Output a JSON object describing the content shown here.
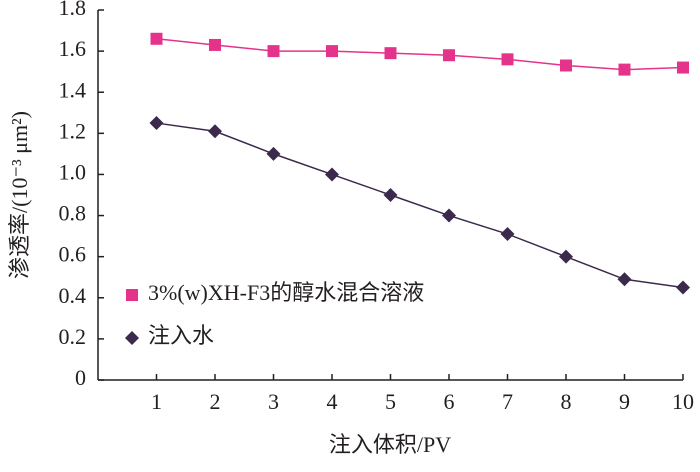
{
  "chart_data": {
    "type": "line",
    "x_label": "注入体积/PV",
    "y_label": "渗透率/(10⁻³ μm²)",
    "x": [
      1,
      2,
      3,
      4,
      5,
      6,
      7,
      8,
      9,
      10
    ],
    "series": [
      {
        "name": "3%(w)XH-F3的醇水混合溶液",
        "color": "#e5338b",
        "marker": "square",
        "values": [
          1.66,
          1.63,
          1.6,
          1.6,
          1.59,
          1.58,
          1.56,
          1.53,
          1.51,
          1.52
        ]
      },
      {
        "name": "注入水",
        "color": "#3b2a4c",
        "marker": "diamond",
        "values": [
          1.25,
          1.21,
          1.1,
          1.0,
          0.9,
          0.8,
          0.71,
          0.6,
          0.49,
          0.45
        ]
      }
    ],
    "xlim": [
      0,
      10
    ],
    "xticks": [
      1,
      2,
      3,
      4,
      5,
      6,
      7,
      8,
      9,
      10
    ],
    "ylim": [
      0,
      1.8
    ],
    "yticks": [
      0,
      0.2,
      0.4,
      0.6,
      0.8,
      {
        "value": 1,
        "label": "1.0"
      },
      1.2,
      1.4,
      1.6,
      1.8
    ],
    "grid": false,
    "legend": "lower left"
  }
}
